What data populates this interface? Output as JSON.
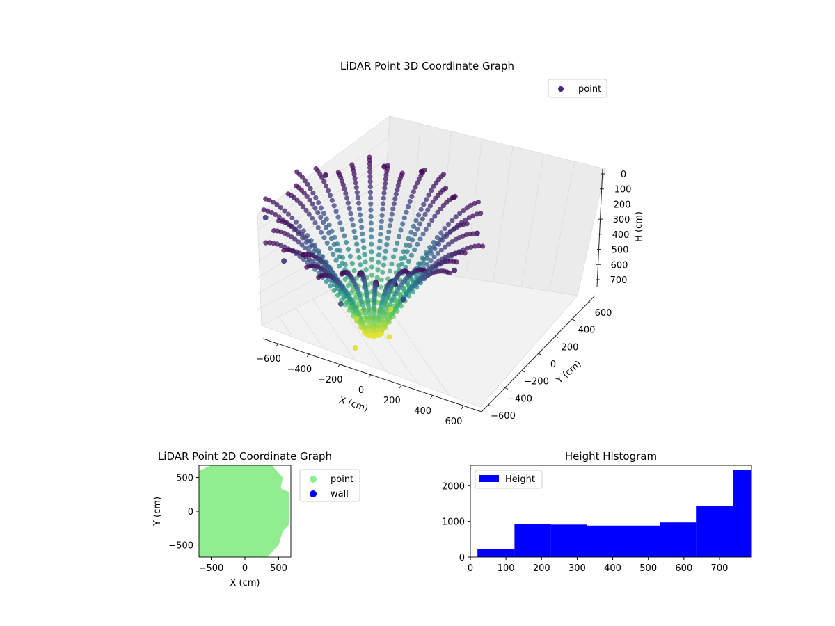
{
  "colors": {
    "viridis_dark": "#440154",
    "viridis_mid": "#21918c",
    "viridis_light": "#fde725",
    "legend_point_3d": "#482878",
    "point_2d": "#90ee90",
    "wall_2d": "#0000ff",
    "hist_bar": "#0000ff"
  },
  "chart_data": [
    {
      "type": "scatter3d",
      "title": "LiDAR Point 3D Coordinate Graph",
      "xlabel": "X (cm)",
      "ylabel": "Y (cm)",
      "zlabel": "H (cm)",
      "x_ticks": [
        "−600",
        "−400",
        "−200",
        "0",
        "200",
        "400",
        "600"
      ],
      "y_ticks": [
        "−600",
        "−400",
        "−200",
        "0",
        "200",
        "400",
        "600"
      ],
      "z_ticks": [
        "0",
        "100",
        "200",
        "300",
        "400",
        "500",
        "600",
        "700"
      ],
      "xlim": [
        -650,
        650
      ],
      "ylim": [
        -650,
        650
      ],
      "zlim": [
        0,
        780
      ],
      "z_inverted": true,
      "colormap": "viridis",
      "legend": [
        "point"
      ],
      "legend_position": "upper right",
      "grid": true,
      "series": [
        {
          "name": "point",
          "description_of_shape": "radial arcs curving from heights near 0 at the edges down to ~750 at center",
          "sample_points": [
            {
              "x": -600,
              "y": -100,
              "h": 150
            },
            {
              "x": -450,
              "y": 300,
              "h": 50
            },
            {
              "x": -200,
              "y": 500,
              "h": 20
            },
            {
              "x": 0,
              "y": 550,
              "h": 10
            },
            {
              "x": 250,
              "y": 450,
              "h": 30
            },
            {
              "x": 500,
              "y": 250,
              "h": 60
            },
            {
              "x": 550,
              "y": -100,
              "h": 80
            },
            {
              "x": 400,
              "y": -400,
              "h": 150
            },
            {
              "x": 100,
              "y": -550,
              "h": 200
            },
            {
              "x": -300,
              "y": -450,
              "h": 120
            },
            {
              "x": -100,
              "y": 0,
              "h": 700
            },
            {
              "x": 100,
              "y": 0,
              "h": 750
            },
            {
              "x": 0,
              "y": -200,
              "h": 740
            },
            {
              "x": 0,
              "y": 200,
              "h": 720
            }
          ]
        }
      ]
    },
    {
      "type": "scatter",
      "title": "LiDAR Point 2D Coordinate Graph",
      "xlabel": "X (cm)",
      "ylabel": "Y (cm)",
      "x_ticks": [
        "−500",
        "0",
        "500"
      ],
      "y_ticks": [
        "−500",
        "0",
        "500"
      ],
      "xlim": [
        -680,
        680
      ],
      "ylim": [
        -680,
        680
      ],
      "legend": [
        "point",
        "wall"
      ],
      "legend_position": "outside right",
      "series": [
        {
          "name": "point",
          "region_outline": [
            [
              -500,
              680
            ],
            [
              400,
              680
            ],
            [
              560,
              500
            ],
            [
              530,
              340
            ],
            [
              660,
              280
            ],
            [
              650,
              -200
            ],
            [
              560,
              -300
            ],
            [
              500,
              -500
            ],
            [
              330,
              -680
            ],
            [
              -680,
              -680
            ],
            [
              -680,
              600
            ]
          ]
        },
        {
          "name": "wall",
          "points": []
        }
      ]
    },
    {
      "type": "histogram",
      "title": "Height Histogram",
      "xlabel": "",
      "ylabel": "",
      "x_ticks": [
        "0",
        "100",
        "200",
        "300",
        "400",
        "500",
        "600",
        "700"
      ],
      "y_ticks": [
        "0",
        "1000",
        "2000"
      ],
      "xlim": [
        0,
        790
      ],
      "ylim": [
        0,
        2570
      ],
      "legend": [
        "Height"
      ],
      "legend_position": "upper left",
      "bin_edges": [
        20,
        124,
        226,
        328,
        430,
        532,
        634,
        738,
        790
      ],
      "counts": [
        230,
        930,
        910,
        880,
        880,
        970,
        1440,
        2440
      ]
    }
  ]
}
